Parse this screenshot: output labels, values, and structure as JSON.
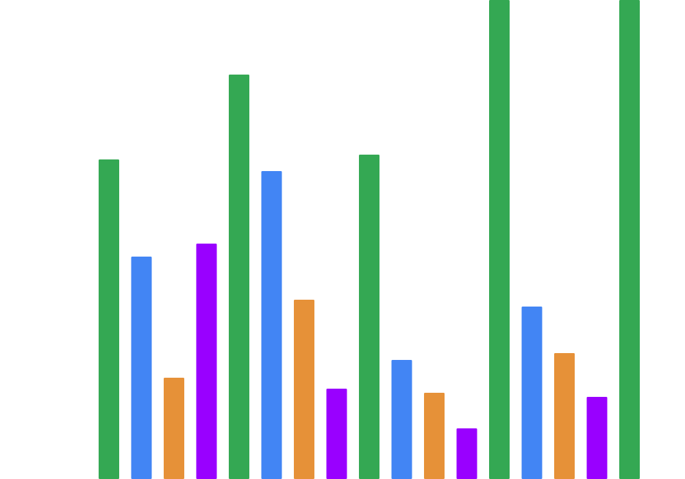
{
  "chart_data": {
    "type": "bar",
    "title": "",
    "xlabel": "",
    "ylabel": "",
    "grid": false,
    "legend": "none",
    "ylim": [
      0,
      700
    ],
    "bars": [
      {
        "color": "#34a853",
        "value": 467
      },
      {
        "color": "#4285f4",
        "value": 325
      },
      {
        "color": "#e69138",
        "value": 148
      },
      {
        "color": "#9900ff",
        "value": 344
      },
      {
        "color": "#34a853",
        "value": 591
      },
      {
        "color": "#4285f4",
        "value": 450
      },
      {
        "color": "#e69138",
        "value": 262
      },
      {
        "color": "#9900ff",
        "value": 132
      },
      {
        "color": "#34a853",
        "value": 474
      },
      {
        "color": "#4285f4",
        "value": 174
      },
      {
        "color": "#e69138",
        "value": 126
      },
      {
        "color": "#9900ff",
        "value": 74
      },
      {
        "color": "#34a853",
        "value": 700
      },
      {
        "color": "#4285f4",
        "value": 252
      },
      {
        "color": "#e69138",
        "value": 184
      },
      {
        "color": "#9900ff",
        "value": 120
      },
      {
        "color": "#34a853",
        "value": 700
      }
    ]
  }
}
